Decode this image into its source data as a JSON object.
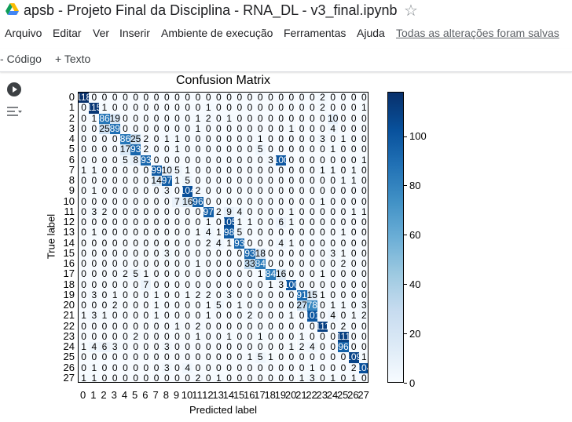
{
  "window": {
    "title": "apsb - Projeto Final da Disciplina - RNA_DL - v3_final.ipynb"
  },
  "menu": {
    "items": [
      "Arquivo",
      "Editar",
      "Ver",
      "Inserir",
      "Ambiente de execução",
      "Ferramentas",
      "Ajuda"
    ],
    "saved_status": "Todas as alterações foram salvas"
  },
  "toolbar": {
    "code_label": "Código",
    "text_label": "Texto"
  },
  "icons": {
    "logo": "google-drive-icon",
    "star": "star-icon",
    "run": "run-cell-icon",
    "cell_menu": "cell-menu-icon"
  },
  "chart_data": {
    "type": "heatmap",
    "title": "Confusion Matrix",
    "xlabel": "Predicted label",
    "ylabel": "True label",
    "labels": [
      "0",
      "1",
      "2",
      "3",
      "4",
      "5",
      "6",
      "7",
      "8",
      "9",
      "10",
      "11",
      "12",
      "13",
      "14",
      "15",
      "16",
      "17",
      "18",
      "19",
      "20",
      "21",
      "22",
      "23",
      "24",
      "25",
      "26",
      "27"
    ],
    "colormap": "Blues",
    "colorbar": {
      "min": 0,
      "max": 118,
      "ticks": [
        0,
        20,
        40,
        60,
        80,
        100
      ]
    },
    "matrix": [
      [
        118,
        0,
        0,
        0,
        0,
        0,
        0,
        0,
        0,
        0,
        0,
        0,
        0,
        0,
        0,
        0,
        0,
        0,
        0,
        0,
        0,
        0,
        0,
        2,
        0,
        0,
        0,
        0
      ],
      [
        0,
        115,
        1,
        0,
        0,
        0,
        0,
        0,
        0,
        0,
        0,
        0,
        1,
        0,
        0,
        0,
        0,
        0,
        0,
        0,
        0,
        0,
        0,
        2,
        0,
        0,
        0,
        1
      ],
      [
        0,
        1,
        86,
        19,
        0,
        0,
        0,
        0,
        0,
        0,
        0,
        1,
        2,
        0,
        1,
        0,
        0,
        0,
        0,
        0,
        0,
        0,
        0,
        0,
        10,
        0,
        0,
        0
      ],
      [
        0,
        0,
        25,
        89,
        0,
        0,
        0,
        0,
        0,
        0,
        0,
        1,
        0,
        0,
        0,
        0,
        0,
        0,
        0,
        0,
        1,
        0,
        0,
        0,
        4,
        0,
        0,
        0
      ],
      [
        0,
        0,
        0,
        0,
        86,
        25,
        2,
        0,
        1,
        1,
        0,
        0,
        0,
        0,
        0,
        0,
        0,
        1,
        0,
        0,
        0,
        0,
        0,
        3,
        0,
        1,
        0,
        0
      ],
      [
        0,
        0,
        0,
        0,
        17,
        93,
        2,
        0,
        0,
        1,
        0,
        0,
        0,
        0,
        0,
        0,
        0,
        5,
        0,
        0,
        0,
        0,
        0,
        0,
        1,
        0,
        0,
        0
      ],
      [
        0,
        0,
        0,
        0,
        5,
        8,
        93,
        0,
        0,
        0,
        0,
        0,
        0,
        0,
        0,
        0,
        0,
        0,
        3,
        100,
        0,
        0,
        0,
        0,
        0,
        0,
        0,
        1
      ],
      [
        1,
        1,
        0,
        0,
        0,
        0,
        0,
        99,
        10,
        5,
        1,
        0,
        0,
        0,
        0,
        0,
        0,
        0,
        0,
        0,
        0,
        0,
        0,
        1,
        1,
        0,
        1,
        0
      ],
      [
        0,
        0,
        0,
        0,
        0,
        0,
        0,
        14,
        97,
        1,
        5,
        0,
        0,
        0,
        0,
        0,
        0,
        0,
        0,
        0,
        0,
        0,
        0,
        0,
        0,
        1,
        1,
        0
      ],
      [
        0,
        1,
        0,
        0,
        0,
        0,
        0,
        0,
        3,
        0,
        104,
        2,
        0,
        0,
        0,
        0,
        0,
        0,
        0,
        0,
        0,
        0,
        0,
        0,
        0,
        0,
        0,
        0
      ],
      [
        0,
        0,
        0,
        0,
        0,
        0,
        0,
        0,
        0,
        7,
        16,
        96,
        0,
        0,
        0,
        0,
        0,
        0,
        0,
        0,
        0,
        0,
        0,
        1,
        0,
        0,
        0,
        0
      ],
      [
        0,
        3,
        2,
        0,
        0,
        0,
        0,
        0,
        0,
        0,
        0,
        0,
        97,
        2,
        9,
        4,
        0,
        0,
        0,
        0,
        1,
        0,
        0,
        0,
        0,
        0,
        1,
        1
      ],
      [
        0,
        0,
        0,
        0,
        0,
        0,
        0,
        0,
        0,
        0,
        0,
        0,
        1,
        0,
        105,
        1,
        1,
        0,
        0,
        6,
        1,
        0,
        0,
        0,
        0,
        0,
        0,
        0
      ],
      [
        0,
        1,
        0,
        0,
        0,
        0,
        0,
        0,
        0,
        0,
        0,
        1,
        4,
        1,
        98,
        5,
        0,
        0,
        0,
        0,
        0,
        0,
        0,
        0,
        0,
        1,
        0,
        0
      ],
      [
        0,
        0,
        0,
        0,
        0,
        0,
        0,
        0,
        0,
        0,
        0,
        0,
        2,
        4,
        1,
        93,
        0,
        0,
        0,
        4,
        1,
        0,
        0,
        0,
        0,
        0,
        0,
        0
      ],
      [
        0,
        0,
        0,
        0,
        0,
        0,
        0,
        0,
        3,
        0,
        0,
        0,
        0,
        0,
        0,
        0,
        93,
        18,
        0,
        0,
        0,
        0,
        0,
        0,
        3,
        1,
        0,
        0
      ],
      [
        0,
        0,
        0,
        0,
        0,
        0,
        0,
        0,
        0,
        0,
        0,
        1,
        0,
        0,
        0,
        0,
        33,
        84,
        0,
        0,
        0,
        0,
        0,
        0,
        0,
        2,
        0,
        0
      ],
      [
        0,
        0,
        0,
        0,
        2,
        5,
        1,
        0,
        0,
        0,
        0,
        0,
        0,
        0,
        0,
        0,
        0,
        1,
        84,
        16,
        0,
        0,
        0,
        1,
        0,
        0,
        0,
        0
      ],
      [
        0,
        0,
        0,
        0,
        0,
        0,
        7,
        0,
        0,
        0,
        0,
        0,
        0,
        0,
        0,
        0,
        0,
        0,
        1,
        3,
        100,
        0,
        0,
        0,
        0,
        0,
        0,
        0
      ],
      [
        0,
        3,
        0,
        1,
        0,
        0,
        0,
        1,
        0,
        0,
        1,
        2,
        2,
        0,
        3,
        0,
        0,
        0,
        0,
        0,
        0,
        91,
        15,
        1,
        0,
        0,
        0,
        0
      ],
      [
        0,
        0,
        0,
        2,
        0,
        0,
        0,
        1,
        0,
        0,
        0,
        0,
        1,
        5,
        0,
        1,
        0,
        0,
        0,
        0,
        0,
        27,
        78,
        0,
        1,
        1,
        0,
        3
      ],
      [
        1,
        3,
        1,
        0,
        0,
        0,
        0,
        1,
        0,
        0,
        0,
        0,
        1,
        0,
        0,
        0,
        2,
        0,
        0,
        0,
        1,
        0,
        101,
        0,
        4,
        0,
        1,
        2
      ],
      [
        0,
        0,
        0,
        0,
        0,
        0,
        0,
        0,
        0,
        1,
        0,
        2,
        0,
        0,
        0,
        0,
        0,
        0,
        0,
        0,
        0,
        0,
        0,
        111,
        0,
        2,
        0,
        0
      ],
      [
        0,
        0,
        0,
        0,
        0,
        2,
        0,
        0,
        0,
        0,
        0,
        1,
        0,
        0,
        1,
        0,
        0,
        1,
        0,
        0,
        0,
        1,
        0,
        0,
        0,
        111,
        0,
        0
      ],
      [
        1,
        4,
        6,
        3,
        0,
        0,
        0,
        0,
        3,
        0,
        0,
        0,
        0,
        0,
        0,
        0,
        0,
        0,
        0,
        0,
        1,
        2,
        4,
        0,
        0,
        96,
        0,
        0
      ],
      [
        0,
        0,
        0,
        0,
        0,
        0,
        0,
        0,
        0,
        0,
        0,
        0,
        0,
        0,
        0,
        0,
        1,
        5,
        1,
        0,
        0,
        0,
        0,
        0,
        0,
        0,
        109,
        1
      ],
      [
        0,
        1,
        0,
        0,
        0,
        0,
        0,
        0,
        3,
        0,
        4,
        0,
        0,
        0,
        0,
        0,
        0,
        0,
        0,
        0,
        0,
        0,
        1,
        0,
        0,
        0,
        2,
        104
      ],
      [
        1,
        1,
        0,
        0,
        0,
        0,
        0,
        0,
        0,
        0,
        0,
        2,
        0,
        1,
        0,
        0,
        0,
        0,
        0,
        0,
        0,
        1,
        3,
        0,
        1,
        0,
        1,
        0
      ]
    ]
  }
}
